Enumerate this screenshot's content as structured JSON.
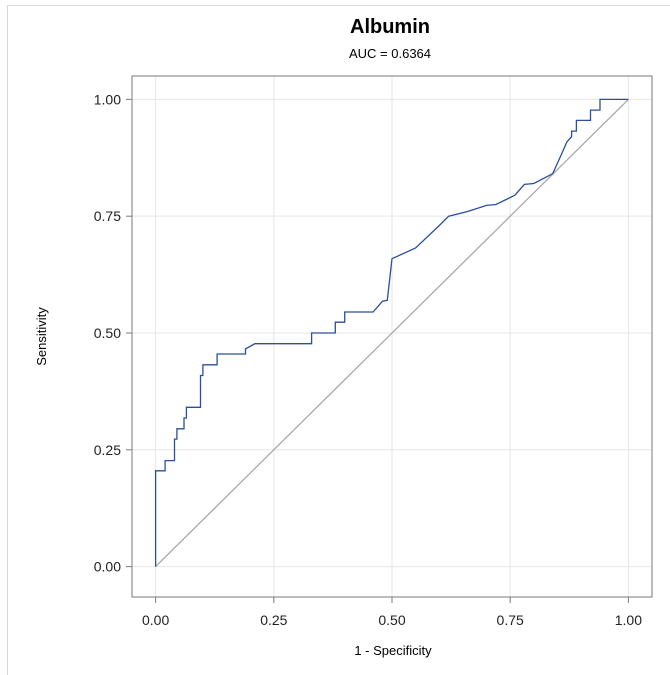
{
  "chart_data": {
    "type": "line",
    "title": "Albumin",
    "subtitle": "AUC = 0.6364",
    "xlabel": "1 - Specificity",
    "ylabel": "Sensitivity",
    "xlim": [
      -0.05,
      1.05
    ],
    "ylim": [
      -0.065,
      1.05
    ],
    "x_ticks": [
      0,
      0.25,
      0.5,
      0.75,
      1.0
    ],
    "x_tick_labels": [
      "0.00",
      "0.25",
      "0.50",
      "0.75",
      "1.00"
    ],
    "y_ticks": [
      0,
      0.25,
      0.5,
      0.75,
      1.0
    ],
    "y_tick_labels": [
      "0.00",
      "0.25",
      "0.50",
      "0.75",
      "1.00"
    ],
    "grid": true,
    "colors": {
      "roc": "#2a4f9c",
      "reference": "#a8a8a8",
      "grid": "#e6e6e6",
      "axis": "#7a7a7a"
    },
    "series": [
      {
        "role": "roc",
        "x": [
          0.0,
          0.0,
          0.02,
          0.02,
          0.04,
          0.04,
          0.045,
          0.045,
          0.06,
          0.06,
          0.065,
          0.065,
          0.095,
          0.095,
          0.1,
          0.1,
          0.13,
          0.13,
          0.19,
          0.19,
          0.21,
          0.33,
          0.33,
          0.38,
          0.38,
          0.4,
          0.4,
          0.46,
          0.48,
          0.49,
          0.5,
          0.55,
          0.6,
          0.62,
          0.66,
          0.7,
          0.72,
          0.76,
          0.78,
          0.8,
          0.84,
          0.86,
          0.87,
          0.88,
          0.88,
          0.89,
          0.89,
          0.92,
          0.92,
          0.94,
          0.94,
          1.0
        ],
        "y": [
          0.0,
          0.205,
          0.205,
          0.227,
          0.227,
          0.273,
          0.273,
          0.295,
          0.295,
          0.318,
          0.318,
          0.341,
          0.341,
          0.409,
          0.409,
          0.432,
          0.432,
          0.455,
          0.455,
          0.466,
          0.477,
          0.477,
          0.5,
          0.5,
          0.523,
          0.523,
          0.545,
          0.545,
          0.568,
          0.57,
          0.659,
          0.682,
          0.73,
          0.75,
          0.76,
          0.773,
          0.775,
          0.795,
          0.818,
          0.82,
          0.841,
          0.886,
          0.909,
          0.92,
          0.932,
          0.932,
          0.955,
          0.955,
          0.977,
          0.977,
          1.0,
          1.0
        ]
      },
      {
        "role": "reference",
        "x": [
          0,
          1
        ],
        "y": [
          0,
          1
        ]
      }
    ]
  }
}
